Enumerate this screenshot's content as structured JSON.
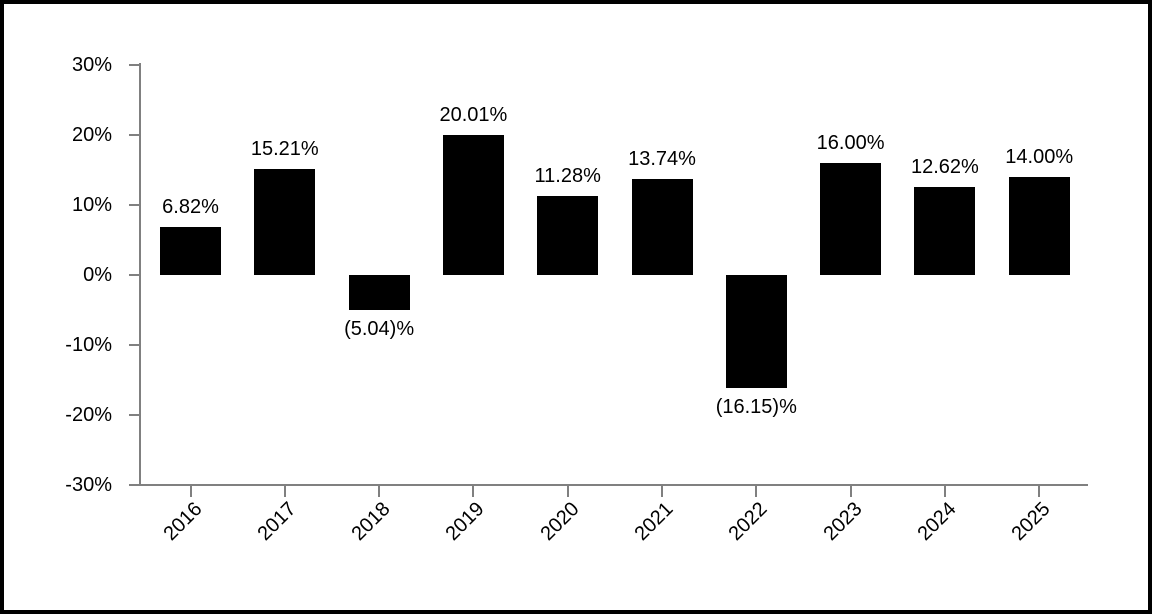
{
  "chart_data": {
    "type": "bar",
    "title": "",
    "xlabel": "",
    "ylabel": "",
    "categories": [
      "2016",
      "2017",
      "2018",
      "2019",
      "2020",
      "2021",
      "2022",
      "2023",
      "2024",
      "2025"
    ],
    "values": [
      6.82,
      15.21,
      -5.04,
      20.01,
      11.28,
      13.74,
      -16.15,
      16.0,
      12.62,
      14.0
    ],
    "bar_labels": [
      "6.82%",
      "15.21%",
      "(5.04)%",
      "20.01%",
      "11.28%",
      "13.74%",
      "(16.15)%",
      "16.00%",
      "12.62%",
      "14.00%"
    ],
    "ylim": [
      -30,
      30
    ],
    "y_tick_values": [
      30,
      20,
      10,
      0,
      -10,
      -20,
      -30
    ],
    "y_tick_labels": [
      "30%",
      "20%",
      "10%",
      "0%",
      "-10%",
      "-20%",
      "-30%"
    ],
    "grid": "off",
    "legend": "none",
    "bar_color": "#000000",
    "axis_color": "#808080",
    "text_color": "#000000",
    "background_color": "#ffffff",
    "border_color": "#000000"
  }
}
